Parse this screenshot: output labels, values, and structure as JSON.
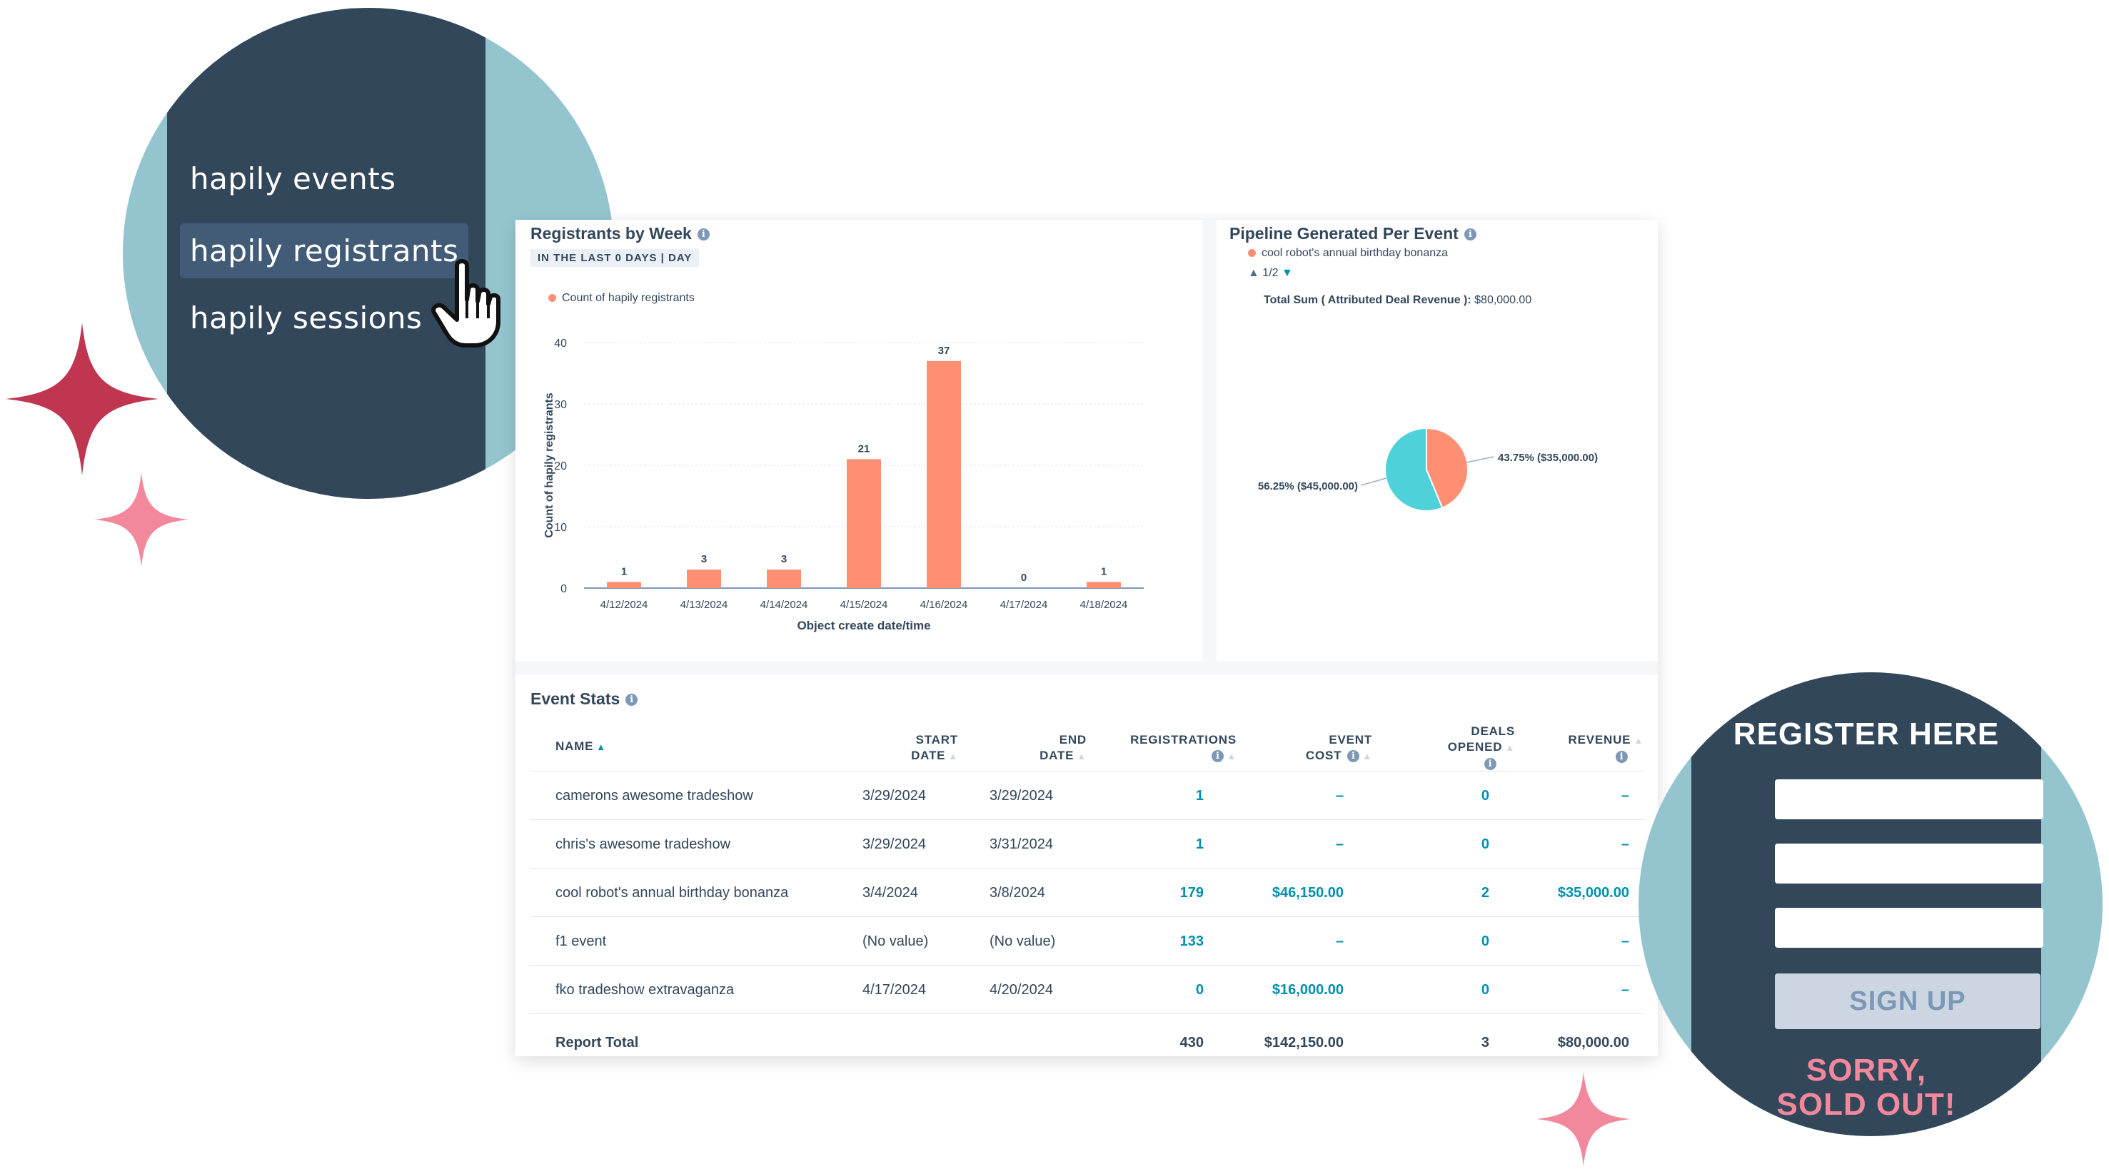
{
  "menu": {
    "items": [
      {
        "label": "hapily events"
      },
      {
        "label": "hapily registrants"
      },
      {
        "label": "hapily sessions"
      }
    ]
  },
  "colors": {
    "navy": "#33475b",
    "teal_circle": "#94c5cf",
    "bar": "#ff8f73",
    "pie_teal": "#4fd1d9",
    "link": "#0091ae",
    "sparkle_red": "#c0354f",
    "sparkle_pink": "#f2889b"
  },
  "registrants_panel": {
    "title": "Registrants by Week",
    "date_tag": "IN THE LAST 0 DAYS | DAY"
  },
  "chart_data": [
    {
      "type": "bar",
      "title": "Registrants by Week",
      "legend": [
        "Count of hapily registrants"
      ],
      "xlabel": "Object create date/time",
      "ylabel": "Count of hapily registrants",
      "categories": [
        "4/12/2024",
        "4/13/2024",
        "4/14/2024",
        "4/15/2024",
        "4/16/2024",
        "4/17/2024",
        "4/18/2024"
      ],
      "values": [
        1,
        3,
        3,
        21,
        37,
        0,
        1
      ],
      "ylim": [
        0,
        40
      ],
      "yticks": [
        0,
        10,
        20,
        30,
        40
      ],
      "grid": true,
      "legend_position": "top-left"
    },
    {
      "type": "pie",
      "title": "Pipeline Generated Per Event",
      "legend": [
        "cool robot's annual birthday bonanza"
      ],
      "subtitle_label": "Total Sum ( Attributed Deal Revenue ):",
      "subtitle_value": "$80,000.00",
      "slices": [
        {
          "value": 45000,
          "percent": 56.25,
          "label": "56.25% ($45,000.00)",
          "color": "#4fd1d9"
        },
        {
          "value": 35000,
          "percent": 43.75,
          "label": "43.75% ($35,000.00)",
          "color": "#ff8f73"
        }
      ],
      "pager": "1/2"
    }
  ],
  "pipeline_panel": {
    "title": "Pipeline Generated Per Event",
    "legend": "cool robot's annual birthday bonanza",
    "pager": "1/2",
    "total_label": "Total Sum ( Attributed Deal Revenue ):",
    "total_value": "$80,000.00",
    "pie_label_left": "56.25% ($45,000.00)",
    "pie_label_right": "43.75% ($35,000.00)"
  },
  "event_stats": {
    "title": "Event Stats",
    "headers": {
      "name": "NAME",
      "start": [
        "START",
        "DATE"
      ],
      "end": [
        "END",
        "DATE"
      ],
      "registrations": "REGISTRATIONS",
      "cost": [
        "EVENT",
        "COST"
      ],
      "deals": [
        "DEALS",
        "OPENED"
      ],
      "revenue": "REVENUE"
    },
    "rows": [
      {
        "name": "camerons awesome tradeshow",
        "start": "3/29/2024",
        "end": "3/29/2024",
        "registrations": "1",
        "cost": "–",
        "deals": "0",
        "revenue": "–"
      },
      {
        "name": "chris's awesome tradeshow",
        "start": "3/29/2024",
        "end": "3/31/2024",
        "registrations": "1",
        "cost": "–",
        "deals": "0",
        "revenue": "–"
      },
      {
        "name": "cool robot's annual birthday bonanza",
        "start": "3/4/2024",
        "end": "3/8/2024",
        "registrations": "179",
        "cost": "$46,150.00",
        "deals": "2",
        "revenue": "$35,000.00"
      },
      {
        "name": "f1 event",
        "start": "(No value)",
        "end": "(No value)",
        "registrations": "133",
        "cost": "–",
        "deals": "0",
        "revenue": "–"
      },
      {
        "name": "fko tradeshow extravaganza",
        "start": "4/17/2024",
        "end": "4/20/2024",
        "registrations": "0",
        "cost": "$16,000.00",
        "deals": "0",
        "revenue": "–"
      }
    ],
    "total": {
      "label": "Report Total",
      "registrations": "430",
      "cost": "$142,150.00",
      "deals": "3",
      "revenue": "$80,000.00"
    }
  },
  "register_form": {
    "title": "REGISTER HERE",
    "button": "SIGN UP",
    "sold_out_line1": "SORRY,",
    "sold_out_line2": "SOLD OUT!"
  }
}
